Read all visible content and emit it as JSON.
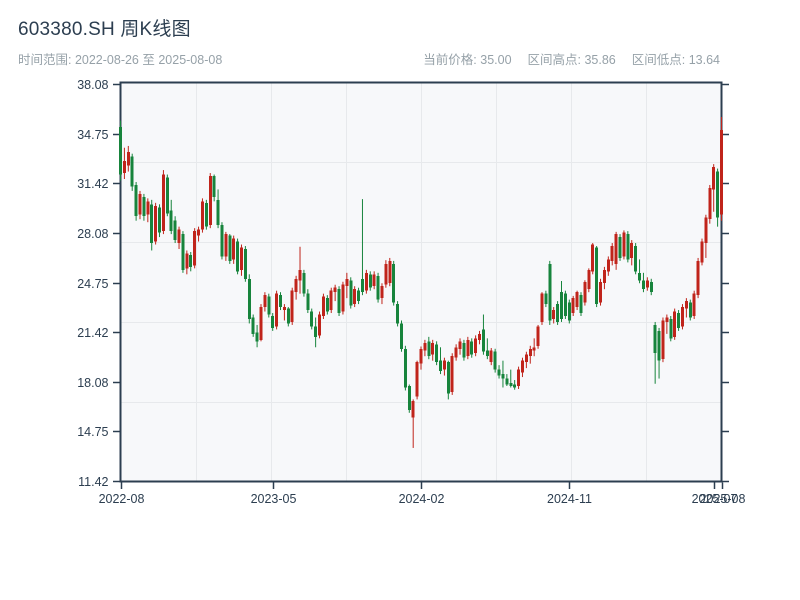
{
  "header": {
    "title": "603380.SH 周K线图",
    "date_range_text": "时间范围: 2022-08-26 至 2025-08-08",
    "stats": [
      {
        "label": "当前价格",
        "text": "当前价格: 35.00"
      },
      {
        "label": "区间高点",
        "text": "区间高点: 35.86"
      },
      {
        "label": "区间低点",
        "text": "区间低点: 13.64"
      }
    ]
  },
  "chart_data": {
    "type": "candlestick",
    "symbol": "603380.SH",
    "interval": "weekly",
    "title": "603380.SH 周K线图",
    "start_date": "2022-08-26",
    "end_date": "2025-08-08",
    "current_price": 35.0,
    "range_high": 35.86,
    "range_low": 13.64,
    "ylim": [
      11.42,
      38.08
    ],
    "y_ticks": [
      38.08,
      34.75,
      31.42,
      28.08,
      24.75,
      21.42,
      18.08,
      14.75,
      11.42
    ],
    "x_ticks": [
      {
        "week": 0,
        "label": "2022-08"
      },
      {
        "week": 39,
        "label": "2023-05"
      },
      {
        "week": 77,
        "label": "2024-02"
      },
      {
        "week": 115,
        "label": "2024-11"
      },
      {
        "week": 152,
        "label": "2025-07"
      },
      {
        "week": 154,
        "label": "2025-08"
      }
    ],
    "grid": {
      "columns": 8,
      "rows": 5,
      "visible": true
    },
    "colors": {
      "up": "#c0241b",
      "down": "#17843c",
      "axis": "#2c3e50",
      "grid": "#e7e9ec",
      "plot_bg": "#f7f8fa",
      "muted_text": "#96a1a8"
    },
    "ohlc": [
      [
        35.2,
        35.62,
        31.6,
        32.0
      ],
      [
        32.1,
        33.8,
        31.7,
        32.9
      ],
      [
        32.6,
        33.92,
        32.2,
        33.5
      ],
      [
        33.2,
        33.4,
        30.9,
        31.2
      ],
      [
        31.3,
        31.5,
        28.9,
        29.2
      ],
      [
        29.3,
        30.9,
        29.0,
        30.7
      ],
      [
        30.5,
        30.7,
        28.9,
        29.2
      ],
      [
        29.3,
        30.4,
        28.8,
        30.2
      ],
      [
        30.0,
        30.3,
        26.9,
        27.4
      ],
      [
        27.5,
        30.1,
        27.3,
        29.9
      ],
      [
        29.8,
        30.0,
        27.8,
        28.1
      ],
      [
        28.2,
        32.3,
        28.0,
        32.0
      ],
      [
        31.8,
        32.0,
        29.2,
        29.4
      ],
      [
        29.6,
        30.3,
        28.0,
        28.2
      ],
      [
        28.9,
        29.2,
        27.4,
        27.6
      ],
      [
        27.4,
        28.5,
        27.0,
        28.3
      ],
      [
        28.0,
        28.2,
        25.4,
        25.6
      ],
      [
        25.7,
        26.9,
        25.3,
        26.7
      ],
      [
        26.6,
        26.8,
        25.5,
        25.8
      ],
      [
        25.9,
        28.4,
        25.7,
        28.2
      ],
      [
        27.9,
        28.5,
        27.5,
        28.3
      ],
      [
        28.3,
        30.4,
        28.1,
        30.2
      ],
      [
        30.1,
        30.3,
        28.3,
        28.5
      ],
      [
        28.6,
        32.1,
        28.4,
        31.9
      ],
      [
        31.9,
        32.0,
        30.2,
        30.5
      ],
      [
        30.3,
        31.0,
        28.4,
        28.6
      ],
      [
        28.6,
        28.8,
        26.3,
        26.5
      ],
      [
        26.5,
        28.15,
        26.2,
        28.0
      ],
      [
        27.9,
        28.0,
        26.0,
        26.2
      ],
      [
        26.3,
        27.9,
        26.0,
        27.7
      ],
      [
        27.5,
        27.7,
        25.3,
        25.5
      ],
      [
        25.6,
        27.3,
        25.2,
        27.1
      ],
      [
        27.0,
        27.2,
        24.8,
        25.0
      ],
      [
        25.0,
        25.3,
        22.0,
        22.3
      ],
      [
        22.4,
        22.6,
        21.1,
        21.3
      ],
      [
        21.4,
        21.9,
        20.4,
        20.8
      ],
      [
        20.9,
        23.3,
        20.8,
        23.1
      ],
      [
        23.1,
        24.1,
        22.8,
        23.9
      ],
      [
        23.8,
        24.0,
        22.4,
        22.6
      ],
      [
        22.5,
        22.7,
        21.5,
        21.7
      ],
      [
        21.8,
        24.2,
        21.6,
        24.0
      ],
      [
        23.9,
        24.1,
        22.9,
        23.1
      ],
      [
        22.9,
        23.3,
        22.2,
        23.1
      ],
      [
        23.0,
        23.1,
        21.8,
        22.0
      ],
      [
        22.1,
        24.4,
        21.9,
        24.2
      ],
      [
        24.1,
        25.2,
        23.6,
        25.0
      ],
      [
        24.9,
        27.15,
        24.0,
        25.6
      ],
      [
        25.4,
        25.6,
        23.8,
        24.0
      ],
      [
        24.0,
        24.3,
        22.7,
        22.9
      ],
      [
        22.8,
        23.0,
        21.6,
        21.8
      ],
      [
        21.8,
        22.4,
        20.4,
        21.1
      ],
      [
        21.2,
        22.8,
        21.0,
        22.6
      ],
      [
        22.5,
        24.0,
        22.3,
        23.8
      ],
      [
        23.7,
        23.9,
        22.6,
        22.8
      ],
      [
        22.9,
        24.4,
        22.7,
        24.2
      ],
      [
        24.1,
        24.6,
        23.5,
        24.4
      ],
      [
        24.3,
        24.5,
        22.5,
        22.7
      ],
      [
        22.8,
        24.8,
        22.6,
        24.6
      ],
      [
        24.5,
        25.4,
        23.7,
        25.0
      ],
      [
        24.9,
        25.1,
        23.0,
        23.2
      ],
      [
        23.3,
        24.5,
        23.1,
        24.3
      ],
      [
        24.2,
        24.4,
        23.3,
        23.5
      ],
      [
        25.0,
        30.35,
        23.9,
        24.1
      ],
      [
        24.2,
        25.6,
        24.0,
        25.4
      ],
      [
        25.3,
        25.5,
        24.2,
        24.4
      ],
      [
        24.5,
        25.5,
        24.3,
        25.3
      ],
      [
        25.2,
        25.4,
        23.4,
        23.6
      ],
      [
        23.7,
        24.7,
        23.3,
        24.5
      ],
      [
        24.6,
        26.25,
        24.4,
        26.0
      ],
      [
        24.7,
        26.4,
        24.5,
        26.2
      ],
      [
        26.0,
        26.2,
        23.2,
        23.4
      ],
      [
        23.3,
        23.5,
        21.8,
        22.0
      ],
      [
        22.0,
        22.2,
        20.1,
        20.3
      ],
      [
        20.3,
        20.5,
        17.5,
        17.7
      ],
      [
        17.8,
        17.9,
        16.0,
        16.2
      ],
      [
        15.7,
        16.9,
        13.64,
        16.8
      ],
      [
        17.1,
        19.5,
        16.9,
        19.4
      ],
      [
        19.3,
        20.45,
        18.9,
        20.3
      ],
      [
        20.2,
        20.9,
        19.8,
        20.7
      ],
      [
        20.8,
        21.1,
        19.6,
        19.8
      ],
      [
        19.9,
        20.9,
        19.5,
        20.7
      ],
      [
        20.6,
        20.8,
        19.2,
        19.4
      ],
      [
        19.5,
        20.4,
        18.6,
        18.8
      ],
      [
        18.9,
        19.7,
        18.5,
        19.5
      ],
      [
        19.4,
        19.5,
        16.9,
        17.3
      ],
      [
        17.4,
        20.0,
        17.2,
        19.8
      ],
      [
        19.7,
        20.6,
        19.5,
        20.4
      ],
      [
        20.3,
        21.0,
        19.9,
        20.8
      ],
      [
        20.7,
        20.9,
        19.5,
        19.7
      ],
      [
        19.8,
        21.1,
        19.6,
        20.9
      ],
      [
        20.8,
        21.0,
        19.7,
        19.9
      ],
      [
        20.0,
        21.2,
        19.8,
        21.0
      ],
      [
        20.9,
        21.5,
        20.6,
        21.3
      ],
      [
        21.6,
        22.6,
        19.9,
        20.1
      ],
      [
        20.2,
        21.0,
        19.6,
        19.8
      ],
      [
        19.4,
        20.35,
        19.2,
        20.2
      ],
      [
        20.1,
        20.3,
        18.7,
        18.9
      ],
      [
        18.9,
        19.2,
        18.3,
        18.5
      ],
      [
        18.6,
        19.5,
        17.7,
        18.3
      ],
      [
        18.3,
        18.6,
        17.8,
        17.9
      ],
      [
        18.0,
        18.9,
        17.7,
        17.8
      ],
      [
        17.9,
        18.2,
        17.55,
        17.7
      ],
      [
        17.8,
        19.1,
        17.6,
        18.9
      ],
      [
        18.7,
        19.7,
        18.4,
        19.5
      ],
      [
        19.4,
        20.1,
        19.0,
        19.9
      ],
      [
        19.8,
        20.5,
        19.3,
        20.3
      ],
      [
        20.2,
        21.0,
        19.8,
        20.4
      ],
      [
        20.5,
        21.9,
        20.3,
        21.8
      ],
      [
        22.1,
        24.1,
        21.9,
        24.0
      ],
      [
        24.0,
        24.2,
        23.1,
        23.3
      ],
      [
        26.0,
        26.2,
        21.9,
        22.2
      ],
      [
        22.3,
        23.1,
        22.0,
        22.9
      ],
      [
        23.3,
        23.5,
        21.9,
        22.1
      ],
      [
        24.1,
        24.85,
        22.1,
        22.3
      ],
      [
        24.0,
        24.2,
        22.3,
        22.5
      ],
      [
        23.4,
        23.6,
        22.0,
        22.2
      ],
      [
        22.7,
        23.85,
        22.5,
        23.7
      ],
      [
        23.1,
        24.2,
        22.9,
        24.1
      ],
      [
        23.9,
        24.1,
        22.5,
        22.7
      ],
      [
        23.4,
        24.9,
        23.2,
        24.8
      ],
      [
        24.3,
        25.7,
        24.1,
        25.6
      ],
      [
        25.5,
        27.4,
        25.3,
        27.3
      ],
      [
        27.1,
        27.2,
        23.1,
        23.3
      ],
      [
        23.4,
        25.0,
        23.2,
        24.8
      ],
      [
        24.7,
        25.8,
        24.3,
        25.6
      ],
      [
        25.5,
        26.5,
        25.2,
        26.3
      ],
      [
        26.2,
        27.4,
        25.9,
        27.2
      ],
      [
        26.0,
        28.15,
        25.6,
        28.0
      ],
      [
        27.8,
        28.0,
        26.2,
        26.4
      ],
      [
        26.5,
        28.25,
        26.3,
        28.1
      ],
      [
        28.0,
        28.2,
        26.1,
        26.3
      ],
      [
        26.4,
        27.6,
        25.9,
        27.4
      ],
      [
        27.2,
        27.4,
        25.3,
        25.5
      ],
      [
        25.4,
        26.3,
        24.7,
        24.9
      ],
      [
        24.9,
        25.4,
        24.1,
        24.3
      ],
      [
        24.4,
        25.1,
        24.2,
        24.9
      ],
      [
        24.8,
        25.0,
        23.9,
        24.1
      ],
      [
        21.9,
        22.1,
        17.95,
        20.0
      ],
      [
        21.5,
        21.7,
        18.3,
        19.5
      ],
      [
        19.6,
        22.4,
        19.4,
        22.2
      ],
      [
        22.1,
        22.6,
        21.3,
        22.4
      ],
      [
        22.3,
        22.5,
        20.8,
        21.0
      ],
      [
        21.1,
        23.0,
        20.9,
        22.8
      ],
      [
        22.7,
        22.9,
        21.5,
        21.7
      ],
      [
        21.8,
        23.3,
        21.6,
        23.1
      ],
      [
        23.0,
        23.7,
        22.4,
        23.5
      ],
      [
        23.4,
        23.6,
        22.2,
        22.4
      ],
      [
        22.5,
        24.2,
        22.3,
        24.0
      ],
      [
        23.9,
        26.4,
        23.7,
        26.2
      ],
      [
        26.1,
        27.7,
        25.9,
        27.5
      ],
      [
        27.4,
        29.3,
        26.4,
        29.1
      ],
      [
        29.0,
        31.3,
        28.7,
        31.1
      ],
      [
        31.0,
        32.7,
        29.5,
        32.5
      ],
      [
        32.2,
        32.4,
        28.5,
        29.1
      ],
      [
        29.3,
        35.86,
        28.9,
        35.0
      ]
    ]
  }
}
